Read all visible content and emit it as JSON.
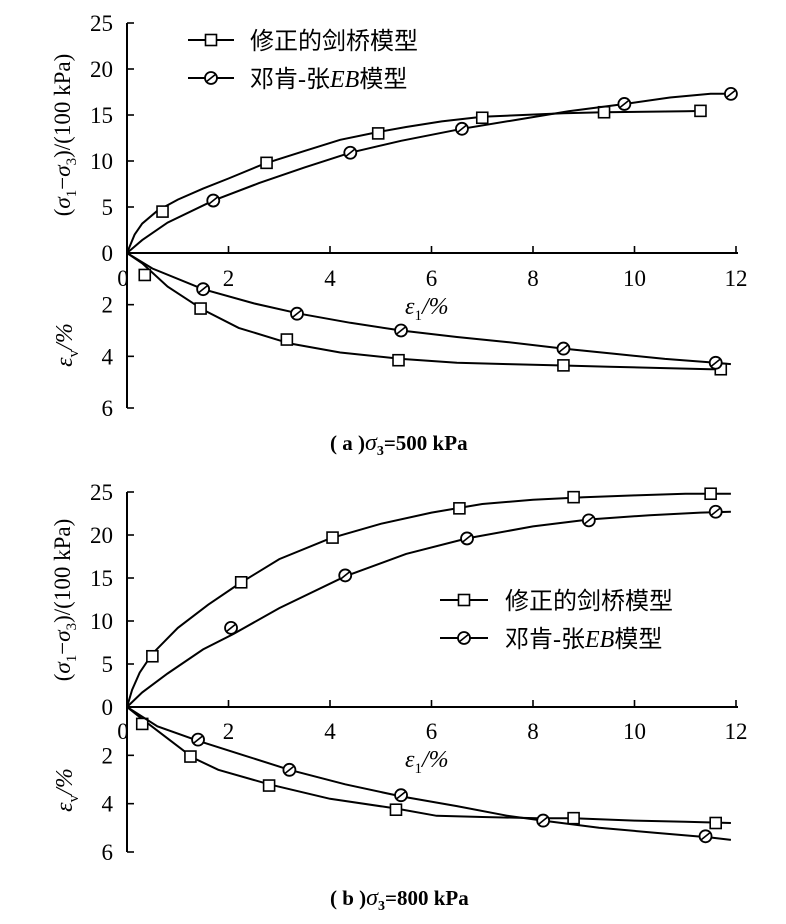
{
  "chart_data": [
    {
      "type": "line",
      "panel": "a",
      "caption": {
        "prefix": "( a )",
        "value": "=500 kPa"
      },
      "xlabel": "ε1/%",
      "ylabel_top": "(σ1−σ3)/(100 kPa)",
      "ylabel_bottom": "εv/%",
      "xlim": [
        0,
        12
      ],
      "ylim_top": [
        0,
        25
      ],
      "ylim_bottom": [
        0,
        6
      ],
      "x_ticks": [
        "0",
        "2",
        "4",
        "6",
        "8",
        "10",
        "12"
      ],
      "y_top_ticks": [
        "0",
        "5",
        "10",
        "15",
        "20",
        "25"
      ],
      "y_bottom_ticks": [
        "0",
        "2",
        "4",
        "6"
      ],
      "legend": {
        "position": "top-left",
        "entries": [
          "修正的剑桥模型",
          "邓肯-张EB模型"
        ]
      },
      "series": [
        {
          "name": "修正的剑桥模型",
          "marker": "square",
          "part": "stress",
          "x": [
            0,
            0.15,
            0.3,
            0.6,
            1.0,
            1.5,
            2.0,
            2.7,
            3.5,
            4.2,
            4.9,
            5.5,
            6.2,
            7.0,
            7.8,
            8.6,
            9.4,
            10.2,
            11.0,
            11.4
          ],
          "y": [
            0,
            2.0,
            3.2,
            4.6,
            5.8,
            7.0,
            8.1,
            9.7,
            11.1,
            12.3,
            13.1,
            13.7,
            14.3,
            14.8,
            15.0,
            15.2,
            15.3,
            15.35,
            15.4,
            15.45
          ],
          "markers": [
            [
              0.7,
              4.5
            ],
            [
              2.75,
              9.8
            ],
            [
              4.95,
              13.0
            ],
            [
              7.0,
              14.7
            ],
            [
              9.4,
              15.3
            ],
            [
              11.3,
              15.45
            ]
          ]
        },
        {
          "name": "邓肯-张EB模型",
          "marker": "circle",
          "part": "stress",
          "x": [
            0,
            0.3,
            0.8,
            1.7,
            2.6,
            3.5,
            4.4,
            5.4,
            6.6,
            7.7,
            8.7,
            9.8,
            10.7,
            11.5,
            11.9
          ],
          "y": [
            0,
            1.4,
            3.3,
            5.7,
            7.6,
            9.3,
            10.9,
            12.2,
            13.5,
            14.5,
            15.4,
            16.2,
            16.9,
            17.3,
            17.3
          ],
          "markers": [
            [
              1.7,
              5.7
            ],
            [
              4.4,
              10.9
            ],
            [
              6.6,
              13.5
            ],
            [
              9.8,
              16.2
            ],
            [
              11.9,
              17.3
            ]
          ]
        },
        {
          "name": "修正的剑桥模型",
          "marker": "square",
          "part": "volumetric",
          "x": [
            0,
            0.3,
            0.8,
            1.5,
            2.2,
            3.2,
            4.2,
            5.4,
            6.5,
            7.5,
            8.5,
            9.5,
            10.5,
            11.5,
            11.8
          ],
          "y": [
            0,
            0.4,
            1.3,
            2.2,
            2.9,
            3.5,
            3.85,
            4.1,
            4.25,
            4.3,
            4.35,
            4.4,
            4.45,
            4.5,
            4.5
          ],
          "markers": [
            [
              0.35,
              0.85
            ],
            [
              1.45,
              2.15
            ],
            [
              3.15,
              3.35
            ],
            [
              5.35,
              4.15
            ],
            [
              8.6,
              4.35
            ],
            [
              11.7,
              4.5
            ]
          ]
        },
        {
          "name": "邓肯-张EB模型",
          "marker": "circle",
          "part": "volumetric",
          "x": [
            0,
            0.5,
            1.5,
            2.5,
            3.4,
            4.4,
            5.4,
            6.5,
            7.5,
            8.6,
            9.6,
            10.6,
            11.6,
            11.9
          ],
          "y": [
            0,
            0.6,
            1.4,
            1.95,
            2.35,
            2.7,
            3.0,
            3.25,
            3.45,
            3.7,
            3.9,
            4.1,
            4.25,
            4.3
          ],
          "markers": [
            [
              1.5,
              1.4
            ],
            [
              3.35,
              2.35
            ],
            [
              5.4,
              3.0
            ],
            [
              8.6,
              3.7
            ],
            [
              11.6,
              4.25
            ]
          ]
        }
      ]
    },
    {
      "type": "line",
      "panel": "b",
      "caption": {
        "prefix": "( b )",
        "value": "=800 kPa"
      },
      "xlabel": "ε1/%",
      "ylabel_top": "(σ1−σ3)/(100 kPa)",
      "ylabel_bottom": "εv/%",
      "xlim": [
        0,
        12
      ],
      "ylim_top": [
        0,
        25
      ],
      "ylim_bottom": [
        0,
        6
      ],
      "x_ticks": [
        "0",
        "2",
        "4",
        "6",
        "8",
        "10",
        "12"
      ],
      "y_top_ticks": [
        "0",
        "5",
        "10",
        "15",
        "20",
        "25"
      ],
      "y_bottom_ticks": [
        "0",
        "2",
        "4",
        "6"
      ],
      "legend": {
        "position": "center-right",
        "entries": [
          "修正的剑桥模型",
          "邓肯-张EB模型"
        ]
      },
      "series": [
        {
          "name": "修正的剑桥模型",
          "marker": "square",
          "part": "stress",
          "x": [
            0,
            0.1,
            0.25,
            0.5,
            1.0,
            1.6,
            2.2,
            3.0,
            4.0,
            5.0,
            6.0,
            7.0,
            8.0,
            9.0,
            10.0,
            11.0,
            11.9
          ],
          "y": [
            0,
            2.0,
            4.0,
            6.2,
            9.2,
            11.9,
            14.3,
            17.2,
            19.6,
            21.3,
            22.6,
            23.6,
            24.1,
            24.4,
            24.6,
            24.8,
            24.8
          ],
          "markers": [
            [
              0.5,
              5.9
            ],
            [
              2.25,
              14.5
            ],
            [
              4.05,
              19.7
            ],
            [
              6.55,
              23.1
            ],
            [
              8.8,
              24.4
            ],
            [
              11.5,
              24.8
            ]
          ]
        },
        {
          "name": "邓肯-张EB模型",
          "marker": "circle",
          "part": "stress",
          "x": [
            0,
            0.3,
            0.8,
            1.5,
            2.1,
            3.0,
            4.3,
            5.5,
            6.7,
            8.0,
            9.1,
            10.3,
            11.3,
            11.9
          ],
          "y": [
            0,
            1.7,
            3.9,
            6.7,
            8.5,
            11.5,
            15.2,
            17.8,
            19.6,
            21.0,
            21.8,
            22.3,
            22.6,
            22.7
          ],
          "markers": [
            [
              2.05,
              9.2
            ],
            [
              4.3,
              15.3
            ],
            [
              6.7,
              19.6
            ],
            [
              9.1,
              21.7
            ],
            [
              11.6,
              22.7
            ]
          ]
        },
        {
          "name": "修正的剑桥模型",
          "marker": "square",
          "part": "volumetric",
          "x": [
            0,
            0.3,
            0.8,
            1.3,
            1.8,
            2.8,
            4.0,
            5.3,
            6.1,
            7.0,
            8.1,
            8.8,
            10.0,
            11.0,
            11.9
          ],
          "y": [
            0,
            0.5,
            1.3,
            2.1,
            2.6,
            3.2,
            3.8,
            4.2,
            4.5,
            4.55,
            4.6,
            4.6,
            4.7,
            4.75,
            4.8
          ],
          "markers": [
            [
              0.3,
              0.7
            ],
            [
              1.25,
              2.05
            ],
            [
              2.8,
              3.25
            ],
            [
              5.3,
              4.25
            ],
            [
              8.8,
              4.6
            ],
            [
              11.6,
              4.8
            ]
          ]
        },
        {
          "name": "邓肯-张EB模型",
          "marker": "circle",
          "part": "volumetric",
          "x": [
            0,
            0.6,
            1.4,
            2.3,
            3.2,
            4.3,
            5.4,
            6.5,
            7.5,
            8.2,
            9.3,
            10.4,
            11.5,
            11.9
          ],
          "y": [
            0,
            0.8,
            1.4,
            2.0,
            2.6,
            3.2,
            3.7,
            4.1,
            4.5,
            4.7,
            5.0,
            5.2,
            5.4,
            5.5
          ],
          "markers": [
            [
              1.4,
              1.35
            ],
            [
              3.2,
              2.6
            ],
            [
              5.4,
              3.65
            ],
            [
              8.2,
              4.7
            ],
            [
              11.4,
              5.35
            ]
          ]
        }
      ]
    }
  ]
}
